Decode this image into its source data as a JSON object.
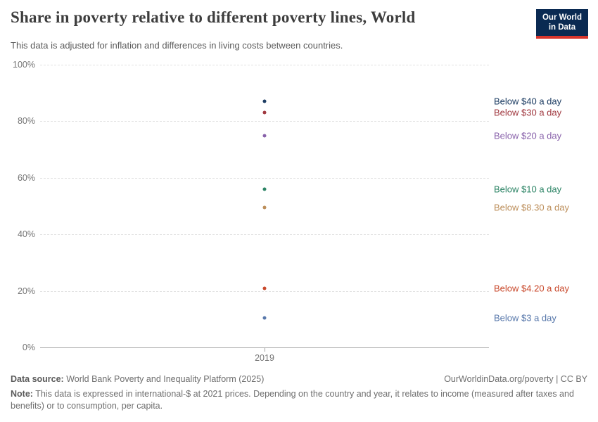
{
  "header": {
    "title": "Share in poverty relative to different poverty lines, World",
    "subtitle": "This data is adjusted for inflation and differences in living costs between countries.",
    "logo": {
      "line1": "Our World",
      "line2": "in Data"
    }
  },
  "chart_data": {
    "type": "scatter",
    "x": [
      "2019"
    ],
    "xlabel": "",
    "ylabel": "",
    "ylim": [
      0,
      100
    ],
    "grid": "horizontal-dashed",
    "legend_position": "right-of-points",
    "yticks": [
      {
        "value": 0,
        "label": "0%"
      },
      {
        "value": 20,
        "label": "20%"
      },
      {
        "value": 40,
        "label": "40%"
      },
      {
        "value": 60,
        "label": "60%"
      },
      {
        "value": 80,
        "label": "80%"
      },
      {
        "value": 100,
        "label": "100%"
      }
    ],
    "series": [
      {
        "name": "Below $40 a day",
        "year": "2019",
        "value": 87,
        "color": "#1d3d63"
      },
      {
        "name": "Below $30 a day",
        "year": "2019",
        "value": 83,
        "color": "#a0383f"
      },
      {
        "name": "Below $20 a day",
        "year": "2019",
        "value": 75,
        "color": "#8861aa"
      },
      {
        "name": "Below $10 a day",
        "year": "2019",
        "value": 56,
        "color": "#2c8465"
      },
      {
        "name": "Below $8.30 a day",
        "year": "2019",
        "value": 49.5,
        "color": "#bc8e5a"
      },
      {
        "name": "Below $4.20 a day",
        "year": "2019",
        "value": 21,
        "color": "#c9492c"
      },
      {
        "name": "Below $3 a day",
        "year": "2019",
        "value": 10.5,
        "color": "#5878ab"
      }
    ]
  },
  "footer": {
    "datasource_label": "Data source:",
    "datasource_text": " World Bank Poverty and Inequality Platform (2025)",
    "rights": "OurWorldinData.org/poverty | CC BY",
    "note_label": "Note:",
    "note_text": " This data is expressed in international-$ at 2021 prices. Depending on the country and year, it relates to income (measured after taxes and benefits) or to consumption, per capita."
  }
}
